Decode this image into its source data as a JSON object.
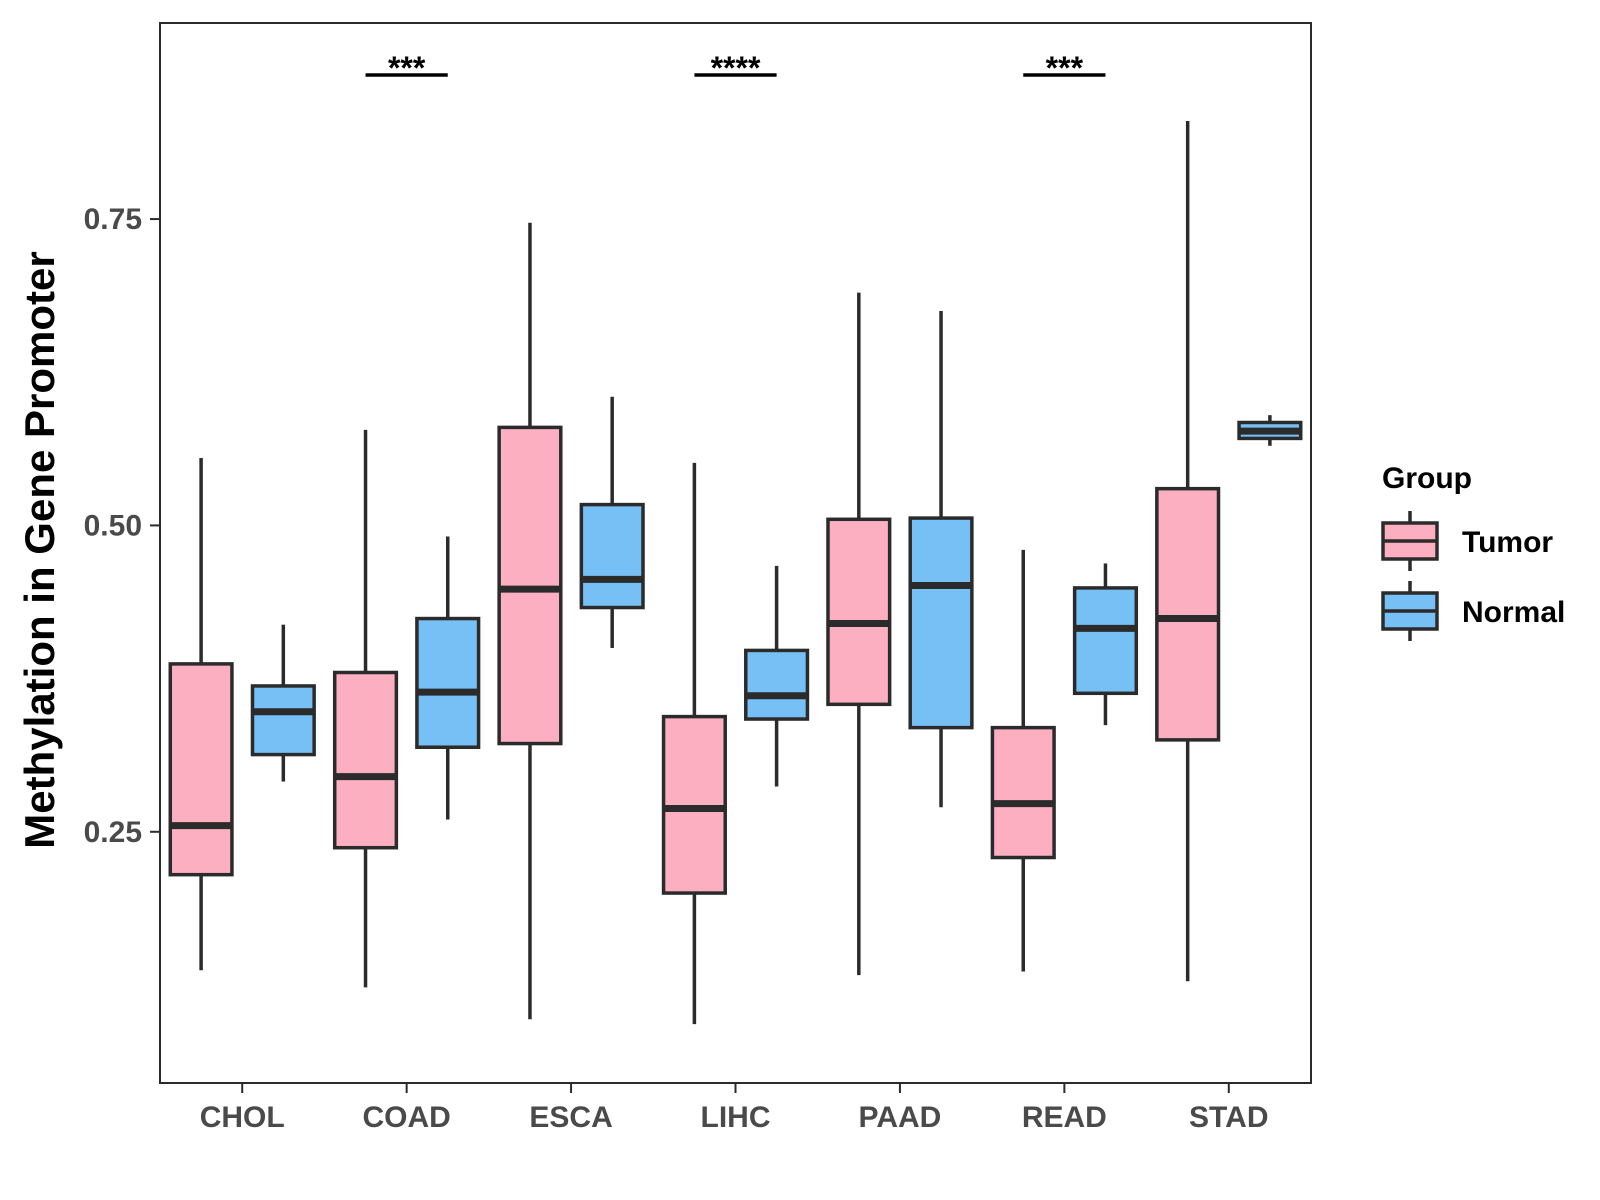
{
  "chart_data": {
    "type": "boxplot",
    "ylabel": "Methylation in Gene Promoter",
    "xlabel": "",
    "ylim": [
      0.045,
      0.91
    ],
    "yticks": [
      0.25,
      0.5,
      0.75
    ],
    "ytick_labels": [
      "0.25",
      "0.50",
      "0.75"
    ],
    "categories": [
      "CHOL",
      "COAD",
      "ESCA",
      "LIHC",
      "PAAD",
      "READ",
      "STAD"
    ],
    "legend": {
      "title": "Group",
      "position": "right",
      "entries": [
        {
          "name": "Tumor",
          "color": "#fbafc1"
        },
        {
          "name": "Normal",
          "color": "#77c0f6"
        }
      ]
    },
    "series": [
      {
        "name": "Tumor",
        "color": "#fbafc1",
        "boxes": [
          {
            "category": "CHOL",
            "min": 0.137,
            "q1": 0.215,
            "median": 0.255,
            "q3": 0.387,
            "max": 0.555
          },
          {
            "category": "COAD",
            "min": 0.123,
            "q1": 0.237,
            "median": 0.295,
            "q3": 0.38,
            "max": 0.578
          },
          {
            "category": "ESCA",
            "min": 0.097,
            "q1": 0.322,
            "median": 0.448,
            "q3": 0.58,
            "max": 0.747
          },
          {
            "category": "LIHC",
            "min": 0.093,
            "q1": 0.2,
            "median": 0.269,
            "q3": 0.344,
            "max": 0.551
          },
          {
            "category": "PAAD",
            "min": 0.133,
            "q1": 0.354,
            "median": 0.42,
            "q3": 0.505,
            "max": 0.69
          },
          {
            "category": "READ",
            "min": 0.136,
            "q1": 0.229,
            "median": 0.273,
            "q3": 0.335,
            "max": 0.48
          },
          {
            "category": "STAD",
            "min": 0.128,
            "q1": 0.325,
            "median": 0.424,
            "q3": 0.53,
            "max": 0.83
          }
        ]
      },
      {
        "name": "Normal",
        "color": "#77c0f6",
        "boxes": [
          {
            "category": "CHOL",
            "min": 0.291,
            "q1": 0.313,
            "median": 0.348,
            "q3": 0.369,
            "max": 0.419
          },
          {
            "category": "COAD",
            "min": 0.26,
            "q1": 0.319,
            "median": 0.364,
            "q3": 0.424,
            "max": 0.491
          },
          {
            "category": "ESCA",
            "min": 0.4,
            "q1": 0.433,
            "median": 0.456,
            "q3": 0.517,
            "max": 0.605
          },
          {
            "category": "LIHC",
            "min": 0.287,
            "q1": 0.342,
            "median": 0.361,
            "q3": 0.398,
            "max": 0.467
          },
          {
            "category": "PAAD",
            "min": 0.27,
            "q1": 0.335,
            "median": 0.451,
            "q3": 0.506,
            "max": 0.675
          },
          {
            "category": "READ",
            "min": 0.337,
            "q1": 0.363,
            "median": 0.416,
            "q3": 0.449,
            "max": 0.469
          },
          {
            "category": "STAD",
            "min": 0.565,
            "q1": 0.571,
            "median": 0.577,
            "q3": 0.584,
            "max": 0.59
          }
        ]
      }
    ],
    "significance": [
      {
        "category": "COAD",
        "label": "***"
      },
      {
        "category": "LIHC",
        "label": "****"
      },
      {
        "category": "READ",
        "label": "***"
      }
    ]
  }
}
